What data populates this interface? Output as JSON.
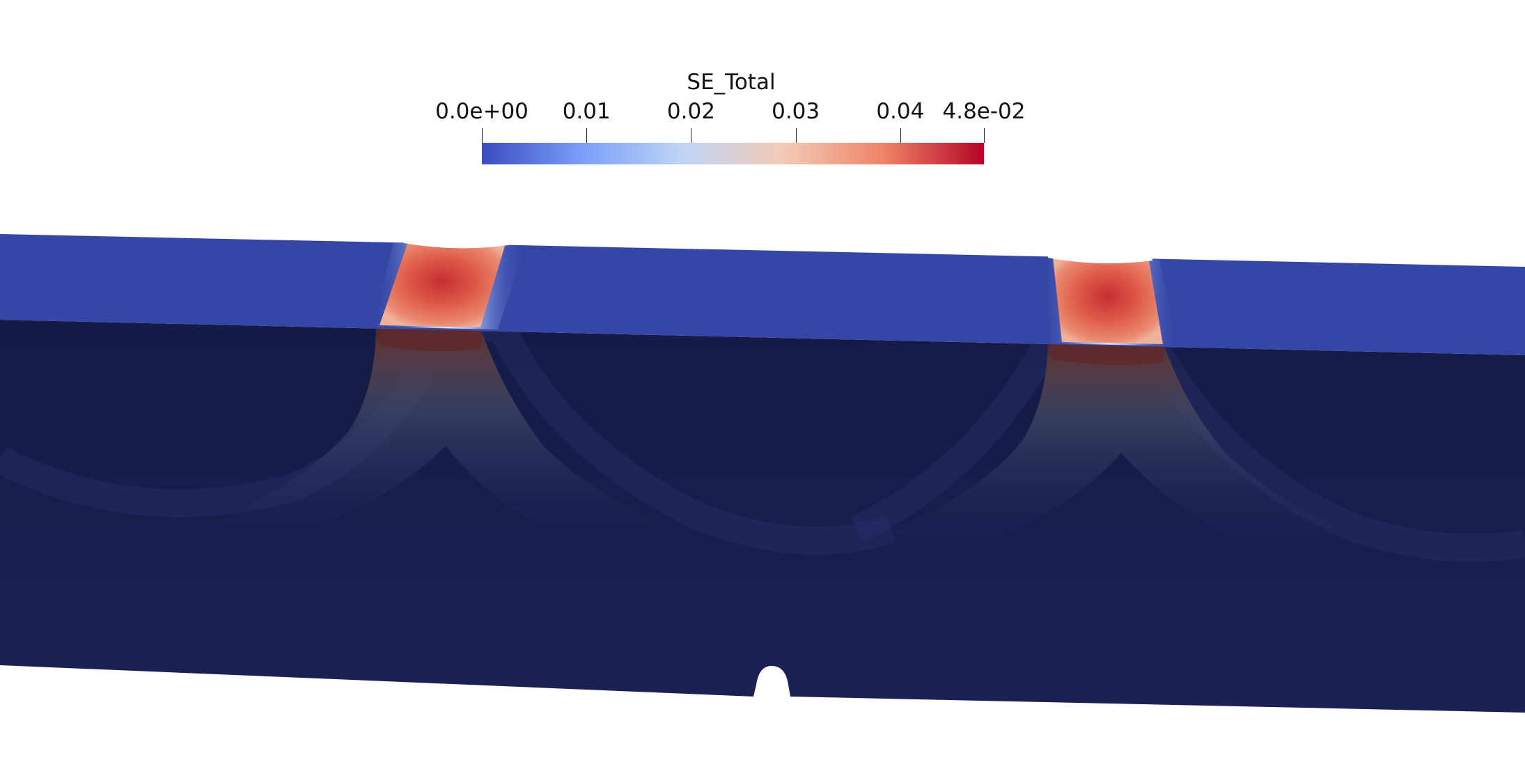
{
  "colorbar": {
    "title": "SE_Total",
    "range": [
      0,
      0.048
    ],
    "ticks": [
      {
        "value": 0,
        "label": "0.0e+00"
      },
      {
        "value": 0.01,
        "label": "0.01"
      },
      {
        "value": 0.02,
        "label": "0.02"
      },
      {
        "value": 0.03,
        "label": "0.03"
      },
      {
        "value": 0.04,
        "label": "0.04"
      },
      {
        "value": 0.048,
        "label": "4.8e-02"
      }
    ],
    "colormap": [
      "#3b4cc0",
      "#7b9ff9",
      "#c0d4f5",
      "#f2cbb7",
      "#ee8468",
      "#b40426"
    ]
  },
  "colors": {
    "background": "#ffffff",
    "top_surface": "#3646a6",
    "side_face": "#161c4a",
    "hot_spot": "#e5624e",
    "hot_core": "#cf3a33"
  }
}
